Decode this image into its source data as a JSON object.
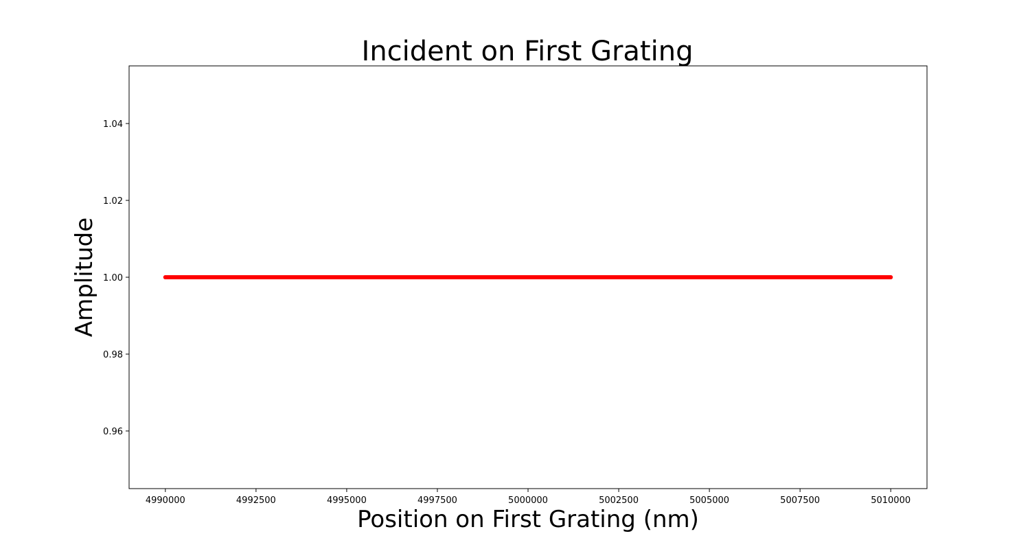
{
  "chart_data": {
    "type": "scatter",
    "title": "Incident on First Grating",
    "xlabel": "Position on First Grating (nm)",
    "ylabel": "Amplitude",
    "xlim": [
      4989000,
      5011000
    ],
    "ylim": [
      0.945,
      1.055
    ],
    "x_ticks": [
      4990000,
      4992500,
      4995000,
      4997500,
      5000000,
      5002500,
      5005000,
      5007500,
      5010000
    ],
    "y_ticks": [
      0.96,
      0.98,
      1.0,
      1.02,
      1.04
    ],
    "y_tick_labels": [
      "0.96",
      "0.98",
      "1.00",
      "1.02",
      "1.04"
    ],
    "series": [
      {
        "x_start": 4990000,
        "x_end": 5010000,
        "y": 1.0,
        "color": "#ff0000"
      }
    ],
    "grid": false,
    "legend": "none"
  }
}
